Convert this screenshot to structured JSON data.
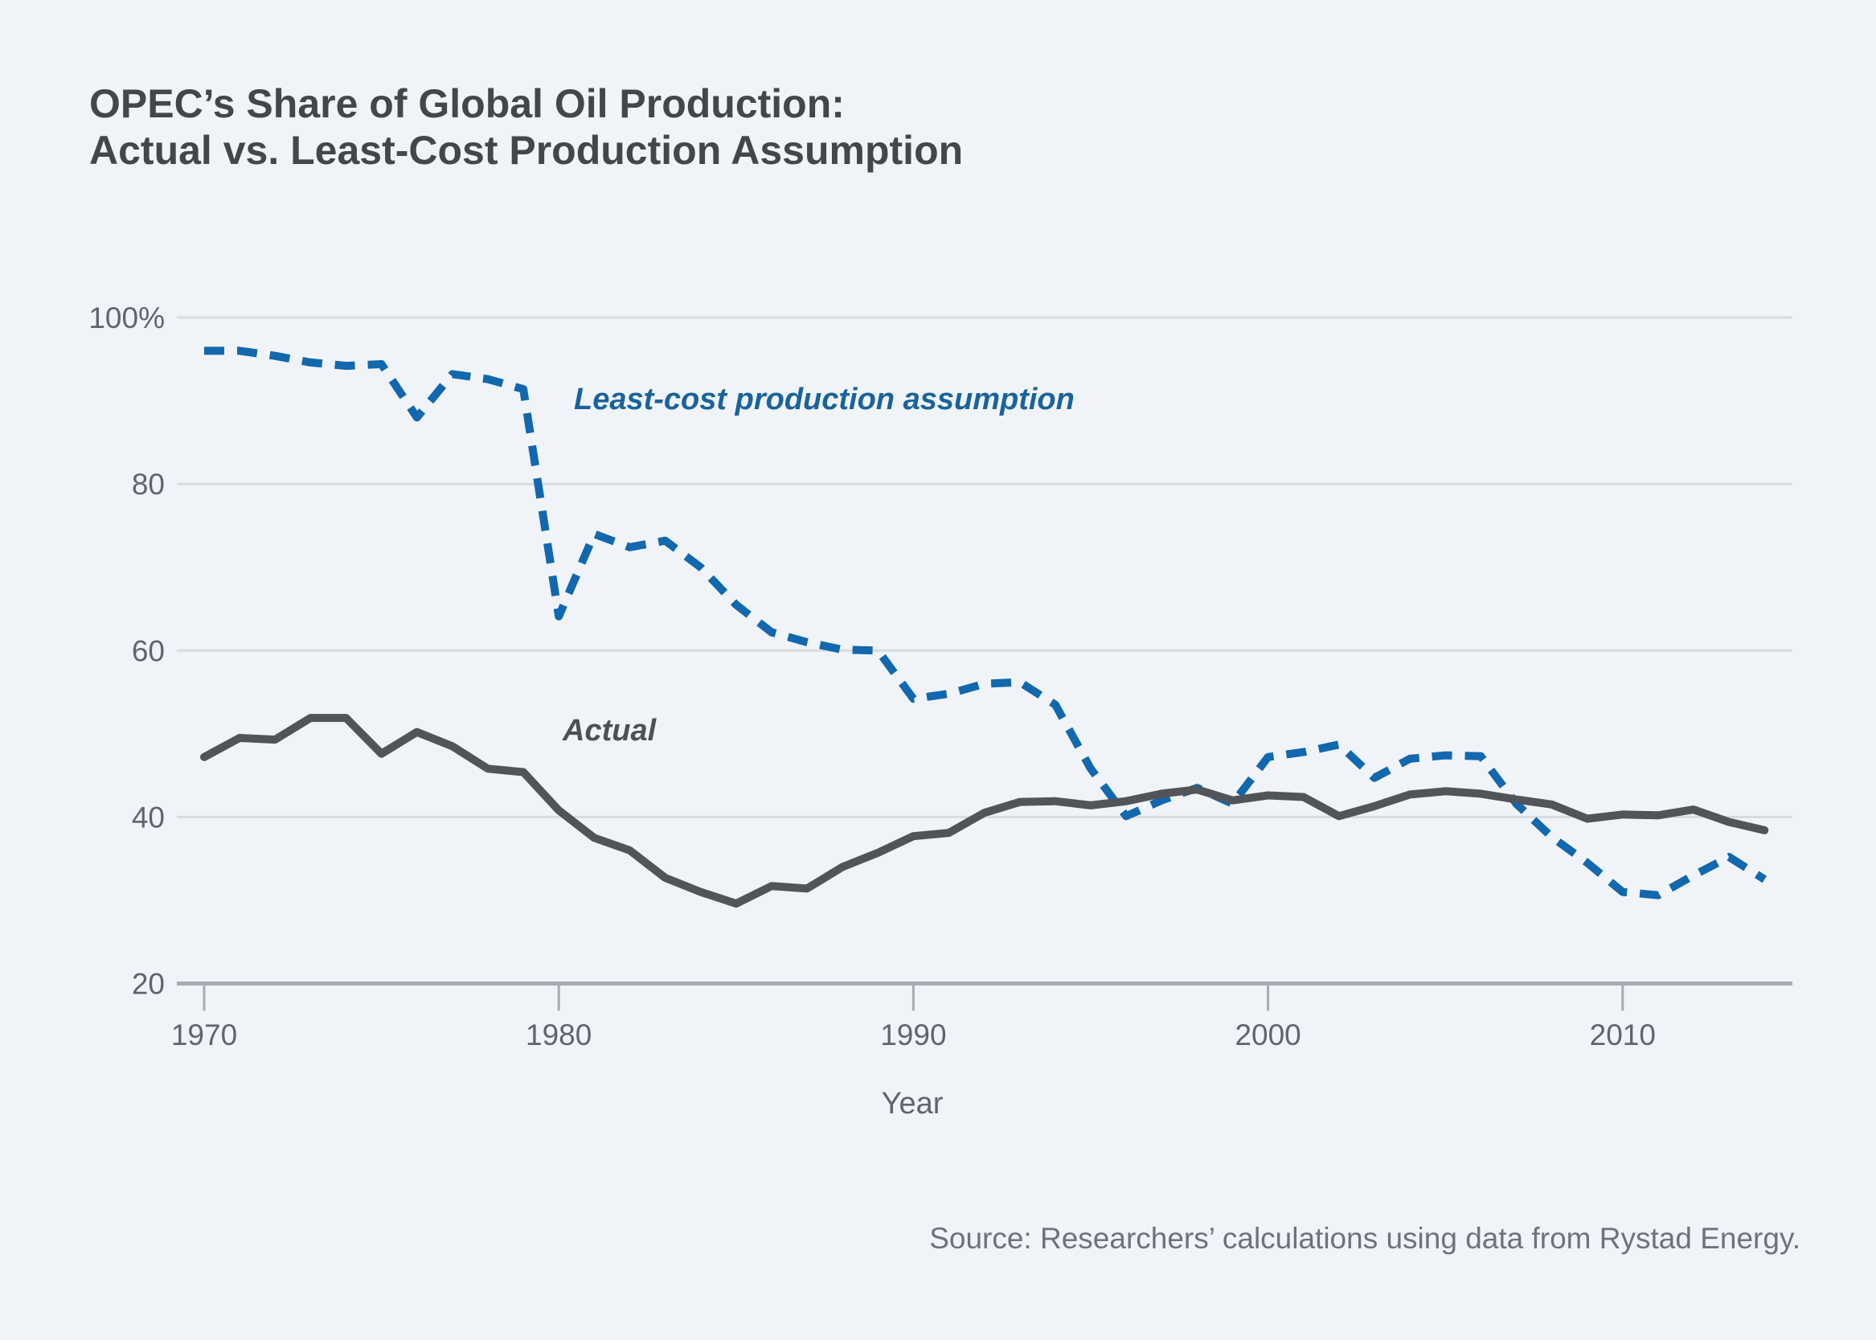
{
  "figure": {
    "title_line1": "OPEC’s Share of Global Oil Production:",
    "title_line2": "Actual vs. Least-Cost Production Assumption",
    "source": "Source: Researchers’ calculations using data from Rystad Energy."
  },
  "chart_data": {
    "type": "line",
    "title": "OPEC's Share of Global Oil Production: Actual vs. Least-Cost Production Assumption",
    "xlabel": "Year",
    "ylabel": "",
    "xlim": [
      1970,
      2014
    ],
    "ylim": [
      20,
      100
    ],
    "grid": "horizontal",
    "legend": "inline-annotations",
    "xticks": [
      {
        "value": 1970,
        "label": "1970"
      },
      {
        "value": 1980,
        "label": "1980"
      },
      {
        "value": 1990,
        "label": "1990"
      },
      {
        "value": 2000,
        "label": "2000"
      },
      {
        "value": 2010,
        "label": "2010"
      }
    ],
    "yticks": [
      {
        "value": 100,
        "label": "100%"
      },
      {
        "value": 80,
        "label": "80"
      },
      {
        "value": 60,
        "label": "60"
      },
      {
        "value": 40,
        "label": "40"
      },
      {
        "value": 20,
        "label": "20"
      }
    ],
    "x": [
      1970,
      1971,
      1972,
      1973,
      1974,
      1975,
      1976,
      1977,
      1978,
      1979,
      1980,
      1981,
      1982,
      1983,
      1984,
      1985,
      1986,
      1987,
      1988,
      1989,
      1990,
      1991,
      1992,
      1993,
      1994,
      1995,
      1996,
      1997,
      1998,
      1999,
      2000,
      2001,
      2002,
      2003,
      2004,
      2005,
      2006,
      2007,
      2008,
      2009,
      2010,
      2011,
      2012,
      2013,
      2014
    ],
    "series": [
      {
        "name": "Least-cost production assumption",
        "color": "#1268ae",
        "style": "dashed",
        "values": [
          96.0,
          96.0,
          95.4,
          94.6,
          94.2,
          94.4,
          88.0,
          93.2,
          92.6,
          91.4,
          64.1,
          74.0,
          72.4,
          73.2,
          70.0,
          65.5,
          62.2,
          61.0,
          60.1,
          60.0,
          54.2,
          54.8,
          56.0,
          56.2,
          53.5,
          45.8,
          40.1,
          42.0,
          43.5,
          41.6,
          47.2,
          47.8,
          48.7,
          44.7,
          47.0,
          47.4,
          47.3,
          41.6,
          37.6,
          34.5,
          31.0,
          30.6,
          33.0,
          35.2,
          32.5
        ]
      },
      {
        "name": "Actual",
        "color": "#515559",
        "style": "solid",
        "values": [
          47.2,
          49.5,
          49.3,
          51.9,
          51.9,
          47.6,
          50.2,
          48.5,
          45.8,
          45.4,
          40.8,
          37.5,
          36.0,
          32.7,
          31.0,
          29.6,
          31.7,
          31.4,
          34.0,
          35.7,
          37.7,
          38.1,
          40.5,
          41.8,
          41.9,
          41.4,
          41.9,
          42.8,
          43.3,
          42.0,
          42.6,
          42.4,
          40.1,
          41.3,
          42.7,
          43.1,
          42.8,
          42.1,
          41.5,
          39.8,
          40.3,
          40.2,
          40.9,
          39.4,
          38.4
        ]
      }
    ],
    "colors": {
      "background": "#f0f4f8",
      "gridline": "#d8dce0",
      "axis": "#a7acb2",
      "title": "#43474c",
      "tick_label": "#5f656c"
    }
  }
}
